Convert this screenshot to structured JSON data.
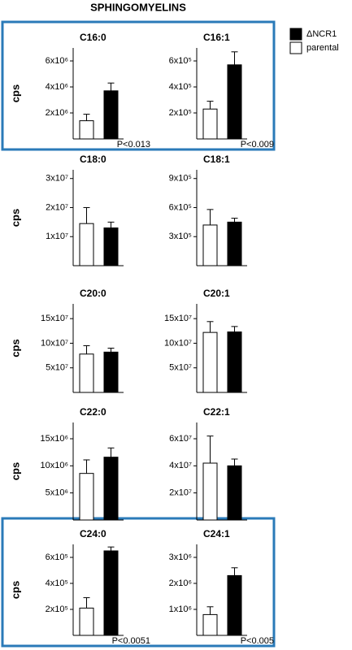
{
  "title": "SPHINGOMYELINS",
  "legend": [
    {
      "name": "parental",
      "color": "#ffffff"
    },
    {
      "name": "ΔNCR1",
      "color": "#000000"
    }
  ],
  "chart_data": [
    {
      "type": "bar",
      "title": "C16:0",
      "ylabel": "cps",
      "highlight": true,
      "annotation": "P<0.013",
      "series": [
        {
          "values": [
            1400000
          ],
          "errors": [
            500000
          ]
        },
        {
          "values": [
            3700000
          ],
          "errors": [
            600000
          ]
        }
      ],
      "ylim": [
        0,
        7000000
      ],
      "yticks": [
        {
          "value": 2000000,
          "label": "2x10⁶"
        },
        {
          "value": 4000000,
          "label": "4x10⁶"
        },
        {
          "value": 6000000,
          "label": "6x10⁶"
        }
      ]
    },
    {
      "type": "bar",
      "title": "C16:1",
      "highlight": true,
      "annotation": "P<0.009",
      "series": [
        {
          "values": [
            230000
          ],
          "errors": [
            60000
          ]
        },
        {
          "values": [
            570000
          ],
          "errors": [
            100000
          ]
        }
      ],
      "ylim": [
        0,
        700000
      ],
      "yticks": [
        {
          "value": 200000,
          "label": "2x10⁵"
        },
        {
          "value": 400000,
          "label": "4x10⁵"
        },
        {
          "value": 600000,
          "label": "6x10⁵"
        }
      ]
    },
    {
      "type": "bar",
      "title": "C18:0",
      "ylabel": "cps",
      "series": [
        {
          "values": [
            14500000
          ],
          "errors": [
            5500000
          ]
        },
        {
          "values": [
            13000000
          ],
          "errors": [
            2000000
          ]
        }
      ],
      "ylim": [
        0,
        33000000
      ],
      "yticks": [
        {
          "value": 10000000,
          "label": "1x10⁷"
        },
        {
          "value": 20000000,
          "label": "2x10⁷"
        },
        {
          "value": 30000000,
          "label": "3x10⁷"
        }
      ]
    },
    {
      "type": "bar",
      "title": "C18:1",
      "series": [
        {
          "values": [
            420000
          ],
          "errors": [
            160000
          ]
        },
        {
          "values": [
            450000
          ],
          "errors": [
            40000
          ]
        }
      ],
      "ylim": [
        0,
        990000
      ],
      "yticks": [
        {
          "value": 300000,
          "label": "3x10⁵"
        },
        {
          "value": 600000,
          "label": "6x10⁵"
        },
        {
          "value": 900000,
          "label": "9x10⁵"
        }
      ]
    },
    {
      "type": "bar",
      "title": "C20:0",
      "ylabel": "cps",
      "series": [
        {
          "values": [
            78000000
          ],
          "errors": [
            17000000
          ]
        },
        {
          "values": [
            82000000
          ],
          "errors": [
            8000000
          ]
        }
      ],
      "ylim": [
        0,
        180000000
      ],
      "yticks": [
        {
          "value": 50000000,
          "label": "5x10⁷"
        },
        {
          "value": 100000000,
          "label": "10x10⁷"
        },
        {
          "value": 150000000,
          "label": "15x10⁷"
        }
      ]
    },
    {
      "type": "bar",
      "title": "C20:1",
      "series": [
        {
          "values": [
            122000000
          ],
          "errors": [
            22000000
          ]
        },
        {
          "values": [
            123000000
          ],
          "errors": [
            11000000
          ]
        }
      ],
      "ylim": [
        0,
        180000000
      ],
      "yticks": [
        {
          "value": 50000000,
          "label": "5x10⁷"
        },
        {
          "value": 100000000,
          "label": "10x10⁷"
        },
        {
          "value": 150000000,
          "label": "15x10⁷"
        }
      ]
    },
    {
      "type": "bar",
      "title": "C22:0",
      "ylabel": "cps",
      "series": [
        {
          "values": [
            8600000
          ],
          "errors": [
            2500000
          ]
        },
        {
          "values": [
            11600000
          ],
          "errors": [
            1700000
          ]
        }
      ],
      "ylim": [
        0,
        18000000
      ],
      "yticks": [
        {
          "value": 5000000,
          "label": "5x10⁶"
        },
        {
          "value": 10000000,
          "label": "10x10⁶"
        },
        {
          "value": 15000000,
          "label": "15x10⁶"
        }
      ]
    },
    {
      "type": "bar",
      "title": "C22:1",
      "series": [
        {
          "values": [
            42000000
          ],
          "errors": [
            20000000
          ]
        },
        {
          "values": [
            40000000
          ],
          "errors": [
            5000000
          ]
        }
      ],
      "ylim": [
        0,
        72000000
      ],
      "yticks": [
        {
          "value": 20000000,
          "label": "2x10⁷"
        },
        {
          "value": 40000000,
          "label": "4x10⁷"
        },
        {
          "value": 60000000,
          "label": "6x10⁷"
        }
      ]
    },
    {
      "type": "bar",
      "title": "C24:0",
      "ylabel": "cps",
      "highlight": true,
      "annotation": "P<0.0051",
      "series": [
        {
          "values": [
            210000
          ],
          "errors": [
            80000
          ]
        },
        {
          "values": [
            650000
          ],
          "errors": [
            30000
          ]
        }
      ],
      "ylim": [
        0,
        700000
      ],
      "yticks": [
        {
          "value": 200000,
          "label": "2x10⁵"
        },
        {
          "value": 400000,
          "label": "4x10⁵"
        },
        {
          "value": 600000,
          "label": "6x10⁵"
        }
      ]
    },
    {
      "type": "bar",
      "title": "C24:1",
      "highlight": true,
      "annotation": "P<0.005",
      "series": [
        {
          "values": [
            800000
          ],
          "errors": [
            300000
          ]
        },
        {
          "values": [
            2300000
          ],
          "errors": [
            300000
          ]
        }
      ],
      "ylim": [
        0,
        3500000
      ],
      "yticks": [
        {
          "value": 1000000,
          "label": "1x10⁶"
        },
        {
          "value": 2000000,
          "label": "2x10⁶"
        },
        {
          "value": 3000000,
          "label": "3x10⁶"
        }
      ]
    }
  ]
}
